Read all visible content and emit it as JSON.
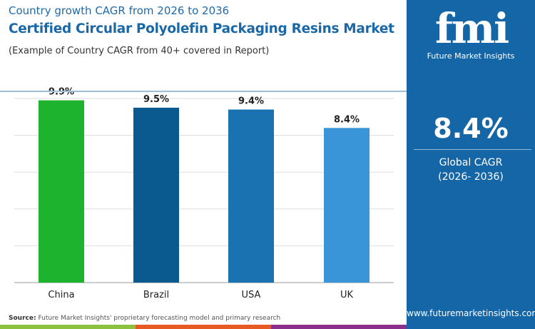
{
  "header": {
    "subtitle": "Country growth CAGR from 2026 to 2036",
    "title": "Certified Circular Polyolefin Packaging Resins Market",
    "note": "(Example of Country CAGR from 40+ covered in Report)"
  },
  "panel": {
    "logo": "fmi",
    "logo_text": "Future Market Insights",
    "global_value": "8.4%",
    "global_label": "Global CAGR",
    "global_period": "(2026- 2036)",
    "website": "www.futuremarketinsights.com",
    "bg": "#1566a6"
  },
  "footer": {
    "source_label": "Source:",
    "source_text": "Future Market Insights' proprietary forecasting model and primary research",
    "stripe_colors": [
      "#8cc13f",
      "#e85a24",
      "#8b2f8c"
    ]
  },
  "chart_data": {
    "type": "bar",
    "categories": [
      "China",
      "Brazil",
      "USA",
      "UK"
    ],
    "values": [
      9.9,
      9.5,
      9.4,
      8.4
    ],
    "labels": [
      "9.9%",
      "9.5%",
      "9.4%",
      "8.4%"
    ],
    "colors": [
      "#1db32e",
      "#0b5a8f",
      "#1a72b0",
      "#3a95d8"
    ],
    "ylim": [
      0,
      10
    ],
    "grid": true,
    "xlabel": "",
    "ylabel": ""
  }
}
